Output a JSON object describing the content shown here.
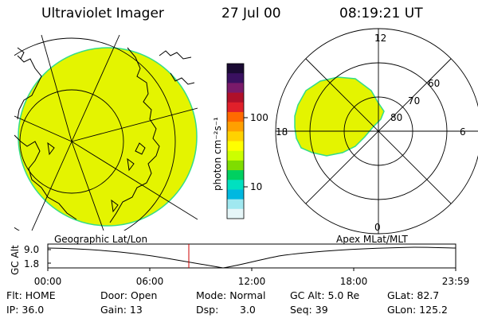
{
  "header": {
    "title": "Ultraviolet Imager",
    "date": "27 Jul 00",
    "time": "08:19:21 UT"
  },
  "colorbar": {
    "unit_label": "photon cm⁻²s⁻¹",
    "ticks": [
      "100",
      "10"
    ],
    "colors": [
      "#1a0a33",
      "#3a1060",
      "#7a1a6a",
      "#b0102a",
      "#e0202a",
      "#ff6a00",
      "#ffa000",
      "#ffd200",
      "#ffff00",
      "#ccff00",
      "#7fdd00",
      "#00d060",
      "#00e0c0",
      "#00b8e0",
      "#a0e8f0",
      "#e6f6f8"
    ]
  },
  "polar_plot": {
    "labels": {
      "top": "12",
      "left": "18",
      "right": "6",
      "bottom": "0"
    },
    "ring_labels": [
      "60",
      "70",
      "80"
    ],
    "fill_color": "#e4f400",
    "edge_color": "#33dd88"
  },
  "geo_plot": {
    "fill_color": "#e4f400",
    "edge_color": "#33dd88"
  },
  "timeline": {
    "left_label": "Geographic Lat/Lon",
    "right_label": "Apex MLat/MLT",
    "axis_title": "GC Alt",
    "y_ticks": [
      "9.0",
      "1.8"
    ],
    "x_ticks": [
      "00:00",
      "06:00",
      "12:00",
      "18:00",
      "23:59"
    ],
    "marker_color": "#cc0000"
  },
  "info": {
    "flt": "Flt: HOME",
    "ip": "IP: 36.0",
    "door": "Door: Open",
    "gain": "Gain: 13",
    "mode": "Mode: Normal",
    "dsp_label": "Dsp:",
    "dsp_value": "3.0",
    "gc_alt": "GC Alt: 5.0 Re",
    "seq": "Seq: 39",
    "glat": "GLat: 82.7",
    "glon": "GLon: 125.2"
  }
}
